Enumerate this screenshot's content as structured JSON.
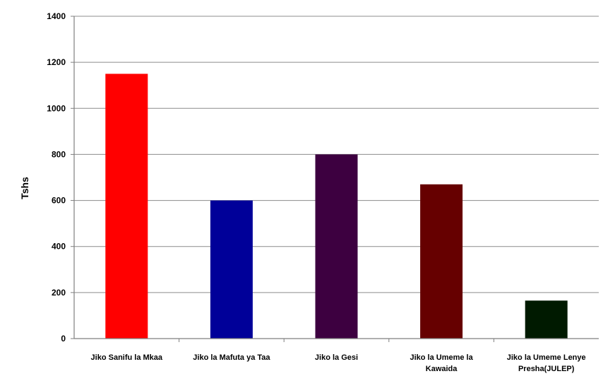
{
  "chart_data": {
    "type": "bar",
    "title": "",
    "xlabel": "",
    "ylabel": "Tshs",
    "ylim": [
      0,
      1400
    ],
    "yticks": [
      0,
      200,
      400,
      600,
      800,
      1000,
      1200,
      1400
    ],
    "grid": true,
    "legend": "none",
    "categories": [
      [
        "Jiko Sanifu la Mkaa"
      ],
      [
        "Jiko la Mafuta ya Taa"
      ],
      [
        "Jiko la Gesi"
      ],
      [
        "Jiko la Umeme la",
        "Kawaida"
      ],
      [
        "Jiko la Umeme Lenye",
        "Presha(JULEP)"
      ]
    ],
    "values": [
      1150,
      600,
      800,
      670,
      165
    ],
    "colors": [
      "#ff0000",
      "#000099",
      "#3d0040",
      "#660000",
      "#001a00"
    ]
  }
}
